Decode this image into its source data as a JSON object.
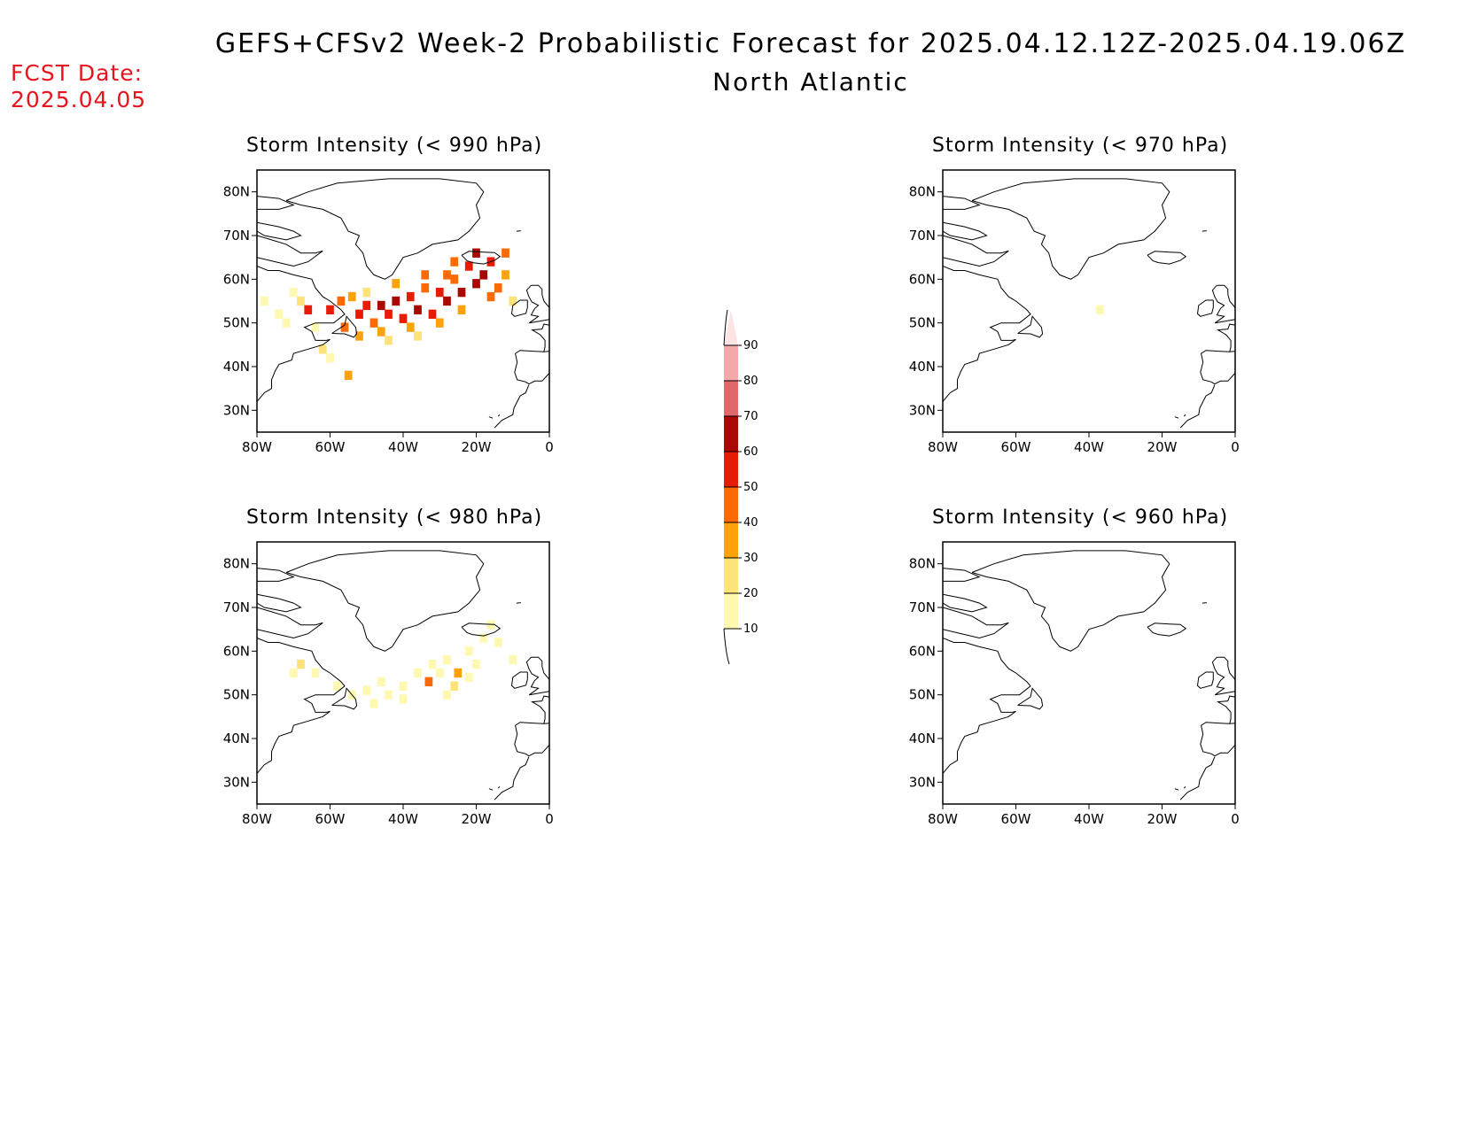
{
  "header": {
    "title": "GEFS+CFSv2 Week-2 Probabilistic Forecast for 2025.04.12.12Z-2025.04.19.06Z",
    "region": "North Atlantic",
    "fcst_label": "FCST Date:",
    "fcst_date": "2025.04.05"
  },
  "axes": {
    "lat_ticks": [
      "80N",
      "70N",
      "60N",
      "50N",
      "40N",
      "30N"
    ],
    "lon_ticks": [
      "80W",
      "60W",
      "40W",
      "20W",
      "0"
    ],
    "lat_values": [
      80,
      70,
      60,
      50,
      40,
      30
    ],
    "lon_values": [
      -80,
      -60,
      -40,
      -20,
      0
    ],
    "lat_range": [
      25,
      85
    ],
    "lon_range": [
      -80,
      0
    ]
  },
  "colorbar": {
    "levels": [
      "10",
      "20",
      "30",
      "40",
      "50",
      "60",
      "70",
      "80",
      "90"
    ],
    "colors": [
      "#fff8b0",
      "#fde37a",
      "#fca20b",
      "#fc6a06",
      "#e81c06",
      "#a80a03",
      "#e06868",
      "#f5a8a8",
      "#fde4e4"
    ]
  },
  "chart_data": {
    "type": "heatmap",
    "panels": [
      {
        "title": "Storm Intensity (< 990 hPa)",
        "cells": [
          {
            "lon": -60,
            "lat": 53,
            "v": 55
          },
          {
            "lon": -57,
            "lat": 55,
            "v": 45
          },
          {
            "lon": -54,
            "lat": 56,
            "v": 35
          },
          {
            "lon": -52,
            "lat": 52,
            "v": 50
          },
          {
            "lon": -50,
            "lat": 54,
            "v": 55
          },
          {
            "lon": -48,
            "lat": 50,
            "v": 45
          },
          {
            "lon": -46,
            "lat": 54,
            "v": 62
          },
          {
            "lon": -44,
            "lat": 52,
            "v": 55
          },
          {
            "lon": -42,
            "lat": 55,
            "v": 65
          },
          {
            "lon": -40,
            "lat": 51,
            "v": 50
          },
          {
            "lon": -38,
            "lat": 56,
            "v": 55
          },
          {
            "lon": -36,
            "lat": 53,
            "v": 62
          },
          {
            "lon": -34,
            "lat": 58,
            "v": 45
          },
          {
            "lon": -32,
            "lat": 52,
            "v": 55
          },
          {
            "lon": -30,
            "lat": 57,
            "v": 50
          },
          {
            "lon": -28,
            "lat": 55,
            "v": 65
          },
          {
            "lon": -26,
            "lat": 60,
            "v": 45
          },
          {
            "lon": -24,
            "lat": 57,
            "v": 62
          },
          {
            "lon": -22,
            "lat": 63,
            "v": 50
          },
          {
            "lon": -20,
            "lat": 59,
            "v": 65
          },
          {
            "lon": -18,
            "lat": 61,
            "v": 62
          },
          {
            "lon": -16,
            "lat": 64,
            "v": 55
          },
          {
            "lon": -14,
            "lat": 58,
            "v": 45
          },
          {
            "lon": -20,
            "lat": 66,
            "v": 62
          },
          {
            "lon": -46,
            "lat": 48,
            "v": 35
          },
          {
            "lon": -38,
            "lat": 49,
            "v": 30
          },
          {
            "lon": -30,
            "lat": 50,
            "v": 35
          },
          {
            "lon": -42,
            "lat": 59,
            "v": 35
          },
          {
            "lon": -34,
            "lat": 61,
            "v": 40
          },
          {
            "lon": -26,
            "lat": 64,
            "v": 40
          },
          {
            "lon": -12,
            "lat": 61,
            "v": 35
          },
          {
            "lon": -10,
            "lat": 55,
            "v": 25
          },
          {
            "lon": -68,
            "lat": 55,
            "v": 25
          },
          {
            "lon": -66,
            "lat": 53,
            "v": 55
          },
          {
            "lon": -70,
            "lat": 57,
            "v": 15
          },
          {
            "lon": -74,
            "lat": 52,
            "v": 12
          },
          {
            "lon": -78,
            "lat": 55,
            "v": 15
          },
          {
            "lon": -64,
            "lat": 49,
            "v": 15
          },
          {
            "lon": -62,
            "lat": 44,
            "v": 22
          },
          {
            "lon": -60,
            "lat": 42,
            "v": 15
          },
          {
            "lon": -55,
            "lat": 38,
            "v": 35
          },
          {
            "lon": -72,
            "lat": 50,
            "v": 12
          },
          {
            "lon": -56,
            "lat": 49,
            "v": 40
          },
          {
            "lon": -52,
            "lat": 47,
            "v": 30
          },
          {
            "lon": -44,
            "lat": 46,
            "v": 25
          },
          {
            "lon": -36,
            "lat": 47,
            "v": 25
          },
          {
            "lon": -24,
            "lat": 53,
            "v": 35
          },
          {
            "lon": -16,
            "lat": 56,
            "v": 45
          },
          {
            "lon": -50,
            "lat": 57,
            "v": 25
          },
          {
            "lon": -28,
            "lat": 61,
            "v": 45
          },
          {
            "lon": -12,
            "lat": 66,
            "v": 40
          }
        ]
      },
      {
        "title": "Storm Intensity (< 970 hPa)",
        "cells": [
          {
            "lon": -37,
            "lat": 53,
            "v": 12
          }
        ]
      },
      {
        "title": "Storm Intensity (< 980 hPa)",
        "cells": [
          {
            "lon": -68,
            "lat": 57,
            "v": 25
          },
          {
            "lon": -70,
            "lat": 55,
            "v": 15
          },
          {
            "lon": -64,
            "lat": 55,
            "v": 12
          },
          {
            "lon": -58,
            "lat": 52,
            "v": 15
          },
          {
            "lon": -54,
            "lat": 50,
            "v": 15
          },
          {
            "lon": -50,
            "lat": 51,
            "v": 15
          },
          {
            "lon": -46,
            "lat": 53,
            "v": 15
          },
          {
            "lon": -44,
            "lat": 50,
            "v": 12
          },
          {
            "lon": -40,
            "lat": 52,
            "v": 15
          },
          {
            "lon": -36,
            "lat": 55,
            "v": 15
          },
          {
            "lon": -33,
            "lat": 53,
            "v": 45
          },
          {
            "lon": -30,
            "lat": 55,
            "v": 15
          },
          {
            "lon": -28,
            "lat": 58,
            "v": 15
          },
          {
            "lon": -25,
            "lat": 55,
            "v": 35
          },
          {
            "lon": -22,
            "lat": 60,
            "v": 15
          },
          {
            "lon": -20,
            "lat": 57,
            "v": 15
          },
          {
            "lon": -18,
            "lat": 63,
            "v": 12
          },
          {
            "lon": -14,
            "lat": 62,
            "v": 12
          },
          {
            "lon": -16,
            "lat": 66,
            "v": 12
          },
          {
            "lon": -10,
            "lat": 58,
            "v": 12
          },
          {
            "lon": -48,
            "lat": 48,
            "v": 12
          },
          {
            "lon": -40,
            "lat": 49,
            "v": 12
          },
          {
            "lon": -28,
            "lat": 50,
            "v": 12
          },
          {
            "lon": -26,
            "lat": 52,
            "v": 22
          },
          {
            "lon": -22,
            "lat": 54,
            "v": 15
          },
          {
            "lon": -32,
            "lat": 57,
            "v": 12
          }
        ]
      },
      {
        "title": "Storm Intensity (< 960 hPa)",
        "cells": []
      }
    ]
  }
}
